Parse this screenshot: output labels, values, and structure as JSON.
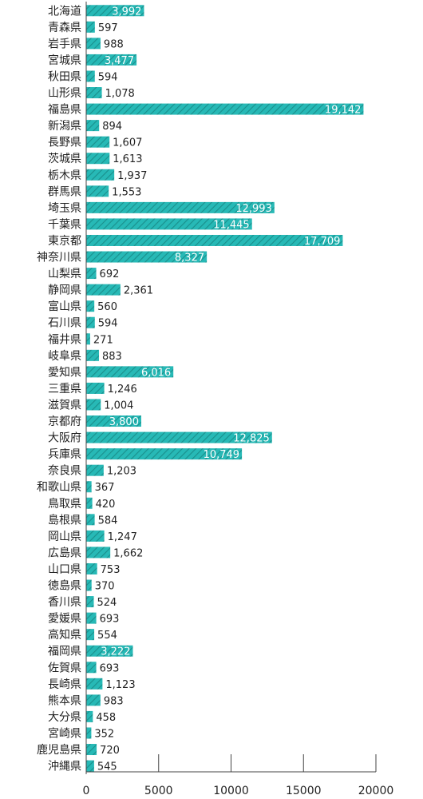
{
  "colors": {
    "bar": "#27b9b6",
    "stripe": "#1a8f8c",
    "axis": "#444444",
    "text": "#222222"
  },
  "chart_data": {
    "type": "bar",
    "orientation": "horizontal",
    "title": "",
    "xlabel": "",
    "ylabel": "",
    "xlim": [
      0,
      20000
    ],
    "xticks": [
      0,
      5000,
      10000,
      15000,
      20000
    ],
    "xtick_labels": [
      "0",
      "5000",
      "10000",
      "15000",
      "20000"
    ],
    "grid": false,
    "categories": [
      "北海道",
      "青森県",
      "岩手県",
      "宮城県",
      "秋田県",
      "山形県",
      "福島県",
      "新潟県",
      "長野県",
      "茨城県",
      "栃木県",
      "群馬県",
      "埼玉県",
      "千葉県",
      "東京都",
      "神奈川県",
      "山梨県",
      "静岡県",
      "富山県",
      "石川県",
      "福井県",
      "岐阜県",
      "愛知県",
      "三重県",
      "滋賀県",
      "京都府",
      "大阪府",
      "兵庫県",
      "奈良県",
      "和歌山県",
      "鳥取県",
      "島根県",
      "岡山県",
      "広島県",
      "山口県",
      "徳島県",
      "香川県",
      "愛媛県",
      "高知県",
      "福岡県",
      "佐賀県",
      "長崎県",
      "熊本県",
      "大分県",
      "宮崎県",
      "鹿児島県",
      "沖縄県"
    ],
    "values": [
      3992,
      597,
      988,
      3477,
      594,
      1078,
      19142,
      894,
      1607,
      1613,
      1937,
      1553,
      12993,
      11445,
      17709,
      8327,
      692,
      2361,
      560,
      594,
      271,
      883,
      6016,
      1246,
      1004,
      3800,
      12825,
      10749,
      1203,
      367,
      420,
      584,
      1247,
      1662,
      753,
      370,
      524,
      693,
      554,
      3222,
      693,
      1123,
      983,
      458,
      352,
      720,
      545
    ],
    "value_labels": [
      "3,992",
      "597",
      "988",
      "3,477",
      "594",
      "1,078",
      "19,142",
      "894",
      "1,607",
      "1,613",
      "1,937",
      "1,553",
      "12,993",
      "11,445",
      "17,709",
      "8,327",
      "692",
      "2,361",
      "560",
      "594",
      "271",
      "883",
      "6,016",
      "1,246",
      "1,004",
      "3,800",
      "12,825",
      "10,749",
      "1,203",
      "367",
      "420",
      "584",
      "1,247",
      "1,662",
      "753",
      "370",
      "524",
      "693",
      "554",
      "3,222",
      "693",
      "1,123",
      "983",
      "458",
      "352",
      "720",
      "545"
    ]
  }
}
